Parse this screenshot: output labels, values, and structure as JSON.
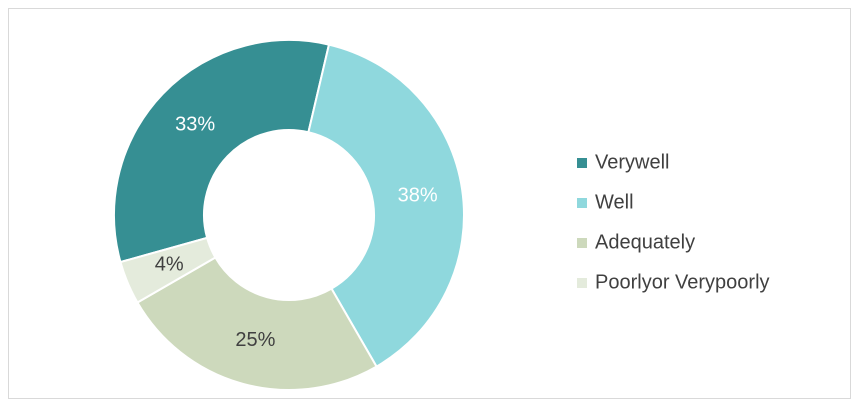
{
  "chart_data": {
    "type": "donut",
    "categories": [
      "Verywell",
      "Well",
      "Adequately",
      "Poorlyor Verypoorly"
    ],
    "values": [
      33,
      38,
      25,
      4
    ],
    "value_labels": [
      "33%",
      "38%",
      "25%",
      "4%"
    ],
    "colors": [
      "#368f93",
      "#8fd8dd",
      "#cdd9bc",
      "#e4ebdc"
    ],
    "legend": "right"
  }
}
